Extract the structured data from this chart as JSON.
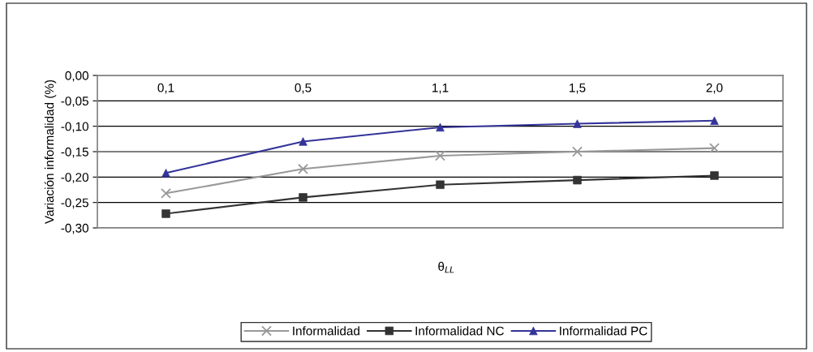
{
  "chart_data": {
    "type": "line",
    "xlabel": "θ$_{LL}$",
    "ylabel": "Variación informalidad (%)",
    "categories": [
      "0,1",
      "0,5",
      "1,1",
      "1,5",
      "2,0"
    ],
    "series": [
      {
        "name": "Informalidad",
        "color": "#999999",
        "marker": "cross",
        "values": [
          -0.232,
          -0.184,
          -0.158,
          -0.15,
          -0.143
        ]
      },
      {
        "name": "Informalidad NC",
        "color": "#333333",
        "marker": "square",
        "values": [
          -0.272,
          -0.24,
          -0.215,
          -0.206,
          -0.197
        ]
      },
      {
        "name": "Informalidad PC",
        "color": "#333399",
        "marker": "triangle",
        "values": [
          -0.192,
          -0.13,
          -0.102,
          -0.095,
          -0.089
        ]
      }
    ],
    "ylim": [
      -0.3,
      0.0
    ],
    "yticks": [
      {
        "value": -0.3,
        "label": "-0,30"
      },
      {
        "value": -0.25,
        "label": "-0,25"
      },
      {
        "value": -0.2,
        "label": "-0,20"
      },
      {
        "value": -0.15,
        "label": "-0,15"
      },
      {
        "value": -0.1,
        "label": "-0,10"
      },
      {
        "value": -0.05,
        "label": "-0,05"
      },
      {
        "value": 0.0,
        "label": "0,00"
      }
    ],
    "grid": "y",
    "legend": "bottom",
    "line_style": "solid"
  }
}
